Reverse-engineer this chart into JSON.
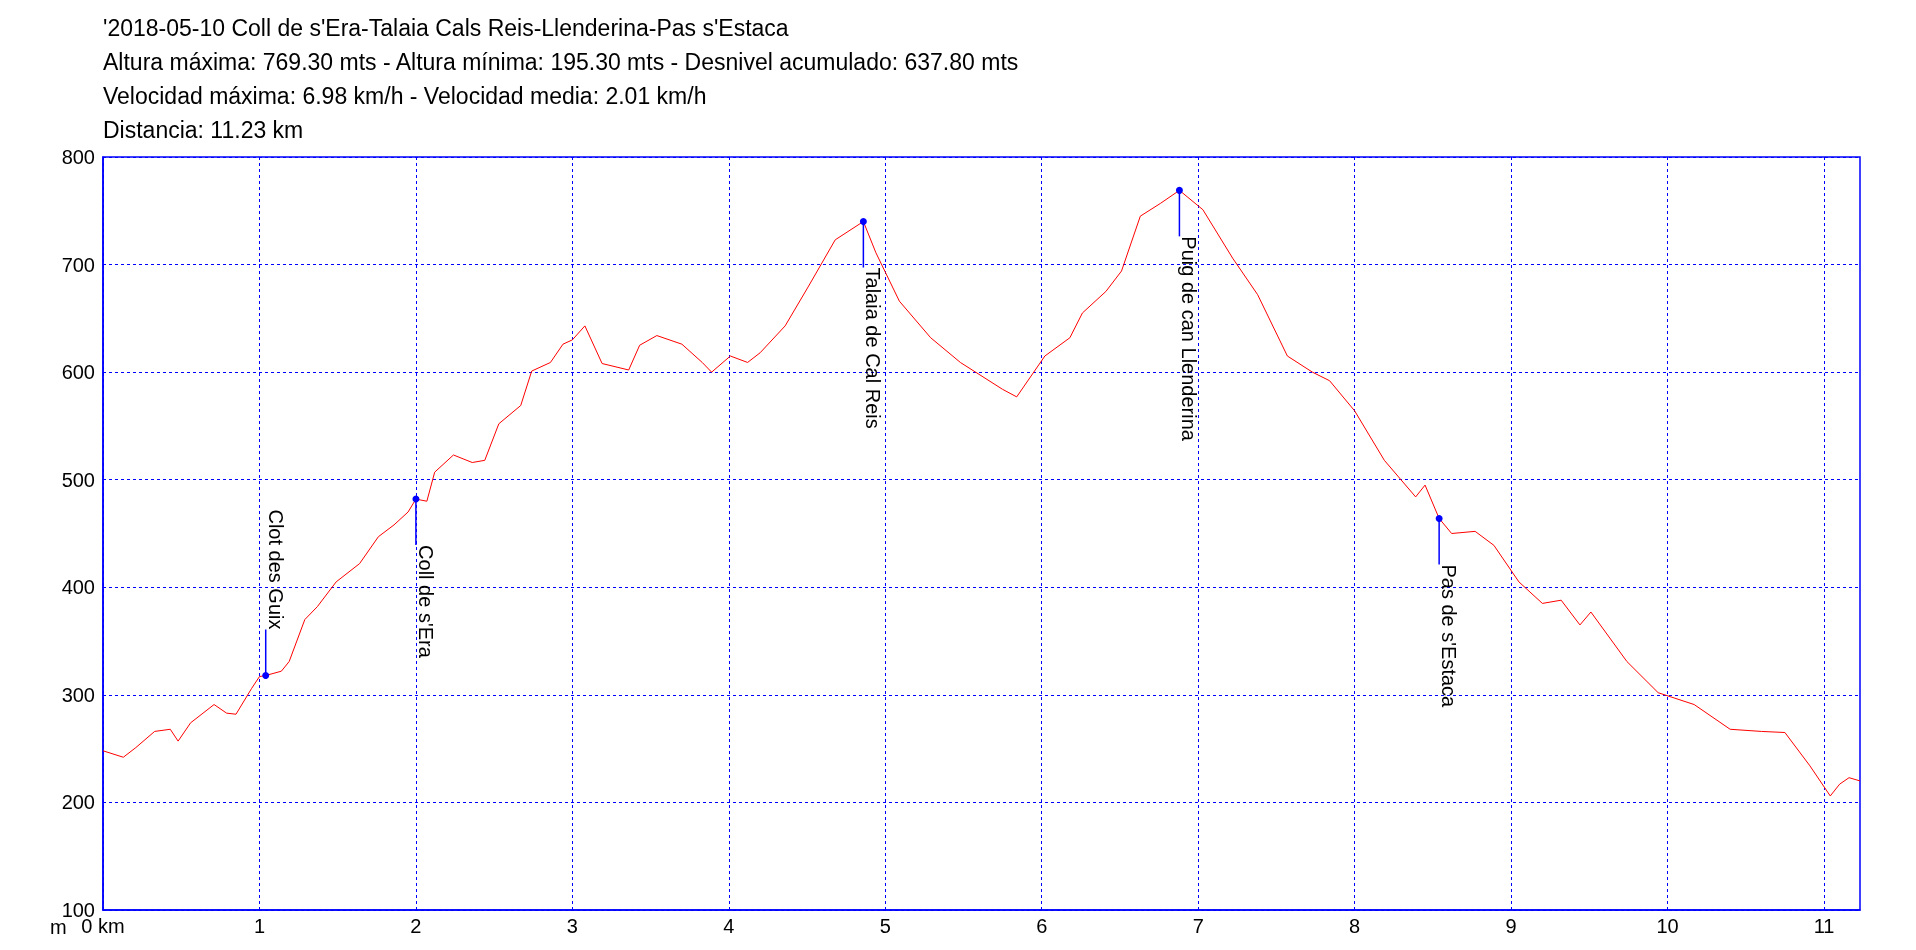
{
  "chart_data": {
    "type": "line",
    "title": "'2018-05-10 Coll de s'Era-Talaia Cals Reis-Llenderina-Pas s'Estaca",
    "subtitle": "Altura máxima: 769.30 mts - Altura mínima: 195.30 mts - Desnivel acumulado: 637.80 mts\nVelocidad máxima: 6.98 km/h - Velocidad media: 2.01 km/h\nDistancia: 11.23 km",
    "ylabel": "m",
    "xlim": [
      0,
      11.23
    ],
    "ylim": [
      100,
      800
    ],
    "xticks": [
      {
        "value": 0,
        "label": "0 km"
      },
      1,
      2,
      3,
      4,
      5,
      6,
      7,
      8,
      9,
      10,
      11
    ],
    "yticks": [
      100,
      200,
      300,
      400,
      500,
      600,
      700,
      800
    ],
    "grid": true,
    "marker": "none",
    "line_style": "solid",
    "series": [
      {
        "color": "#ff0000",
        "x": [
          0,
          0.13,
          0.21,
          0.33,
          0.43,
          0.48,
          0.56,
          0.71,
          0.79,
          0.85,
          0.95,
          1.0,
          1.04,
          1.14,
          1.19,
          1.29,
          1.37,
          1.49,
          1.64,
          1.76,
          1.86,
          1.95,
          2.0,
          2.07,
          2.12,
          2.24,
          2.36,
          2.44,
          2.53,
          2.67,
          2.74,
          2.86,
          2.94,
          3.0,
          3.08,
          3.19,
          3.36,
          3.43,
          3.54,
          3.7,
          3.83,
          3.89,
          4.01,
          4.12,
          4.2,
          4.36,
          4.51,
          4.68,
          4.86,
          4.94,
          5.09,
          5.29,
          5.48,
          5.75,
          5.84,
          6.02,
          6.18,
          6.26,
          6.41,
          6.51,
          6.63,
          6.76,
          6.88,
          7.03,
          7.22,
          7.38,
          7.57,
          7.73,
          7.84,
          8.0,
          8.19,
          8.39,
          8.45,
          8.54,
          8.62,
          8.77,
          8.89,
          9.05,
          9.2,
          9.32,
          9.44,
          9.51,
          9.74,
          9.94,
          10.17,
          10.4,
          10.6,
          10.75,
          10.91,
          11.04,
          11.1,
          11.16,
          11.23
        ],
        "values": [
          248,
          242,
          251,
          266,
          268,
          257,
          274,
          291,
          283,
          282,
          306,
          317,
          318,
          322,
          331,
          370,
          382,
          405,
          422,
          447,
          458,
          470,
          482,
          480,
          507,
          523,
          516,
          518,
          552,
          569,
          601,
          609,
          626,
          630,
          643,
          608,
          602,
          625,
          634,
          626,
          609,
          600,
          615,
          609,
          618,
          643,
          680,
          723,
          740,
          711,
          666,
          632,
          609,
          584,
          577,
          615,
          632,
          655,
          675,
          694,
          745,
          757,
          769,
          751,
          706,
          672,
          615,
          600,
          592,
          564,
          518,
          484,
          495,
          464,
          450,
          452,
          439,
          405,
          385,
          388,
          365,
          377,
          331,
          302,
          291,
          268,
          266,
          265,
          234,
          206,
          217,
          223,
          220
        ]
      }
    ],
    "annotations": [
      {
        "text": "Clot des Guix",
        "x": 1.04,
        "y": 318
      },
      {
        "text": "Coll de s'Era",
        "x": 2.0,
        "y": 482
      },
      {
        "text": "Talaia de Cal Reis",
        "x": 4.86,
        "y": 740
      },
      {
        "text": "Puig de can Llenderina",
        "x": 6.88,
        "y": 769
      },
      {
        "text": "Pas de s'Estaca",
        "x": 8.54,
        "y": 464
      }
    ]
  }
}
